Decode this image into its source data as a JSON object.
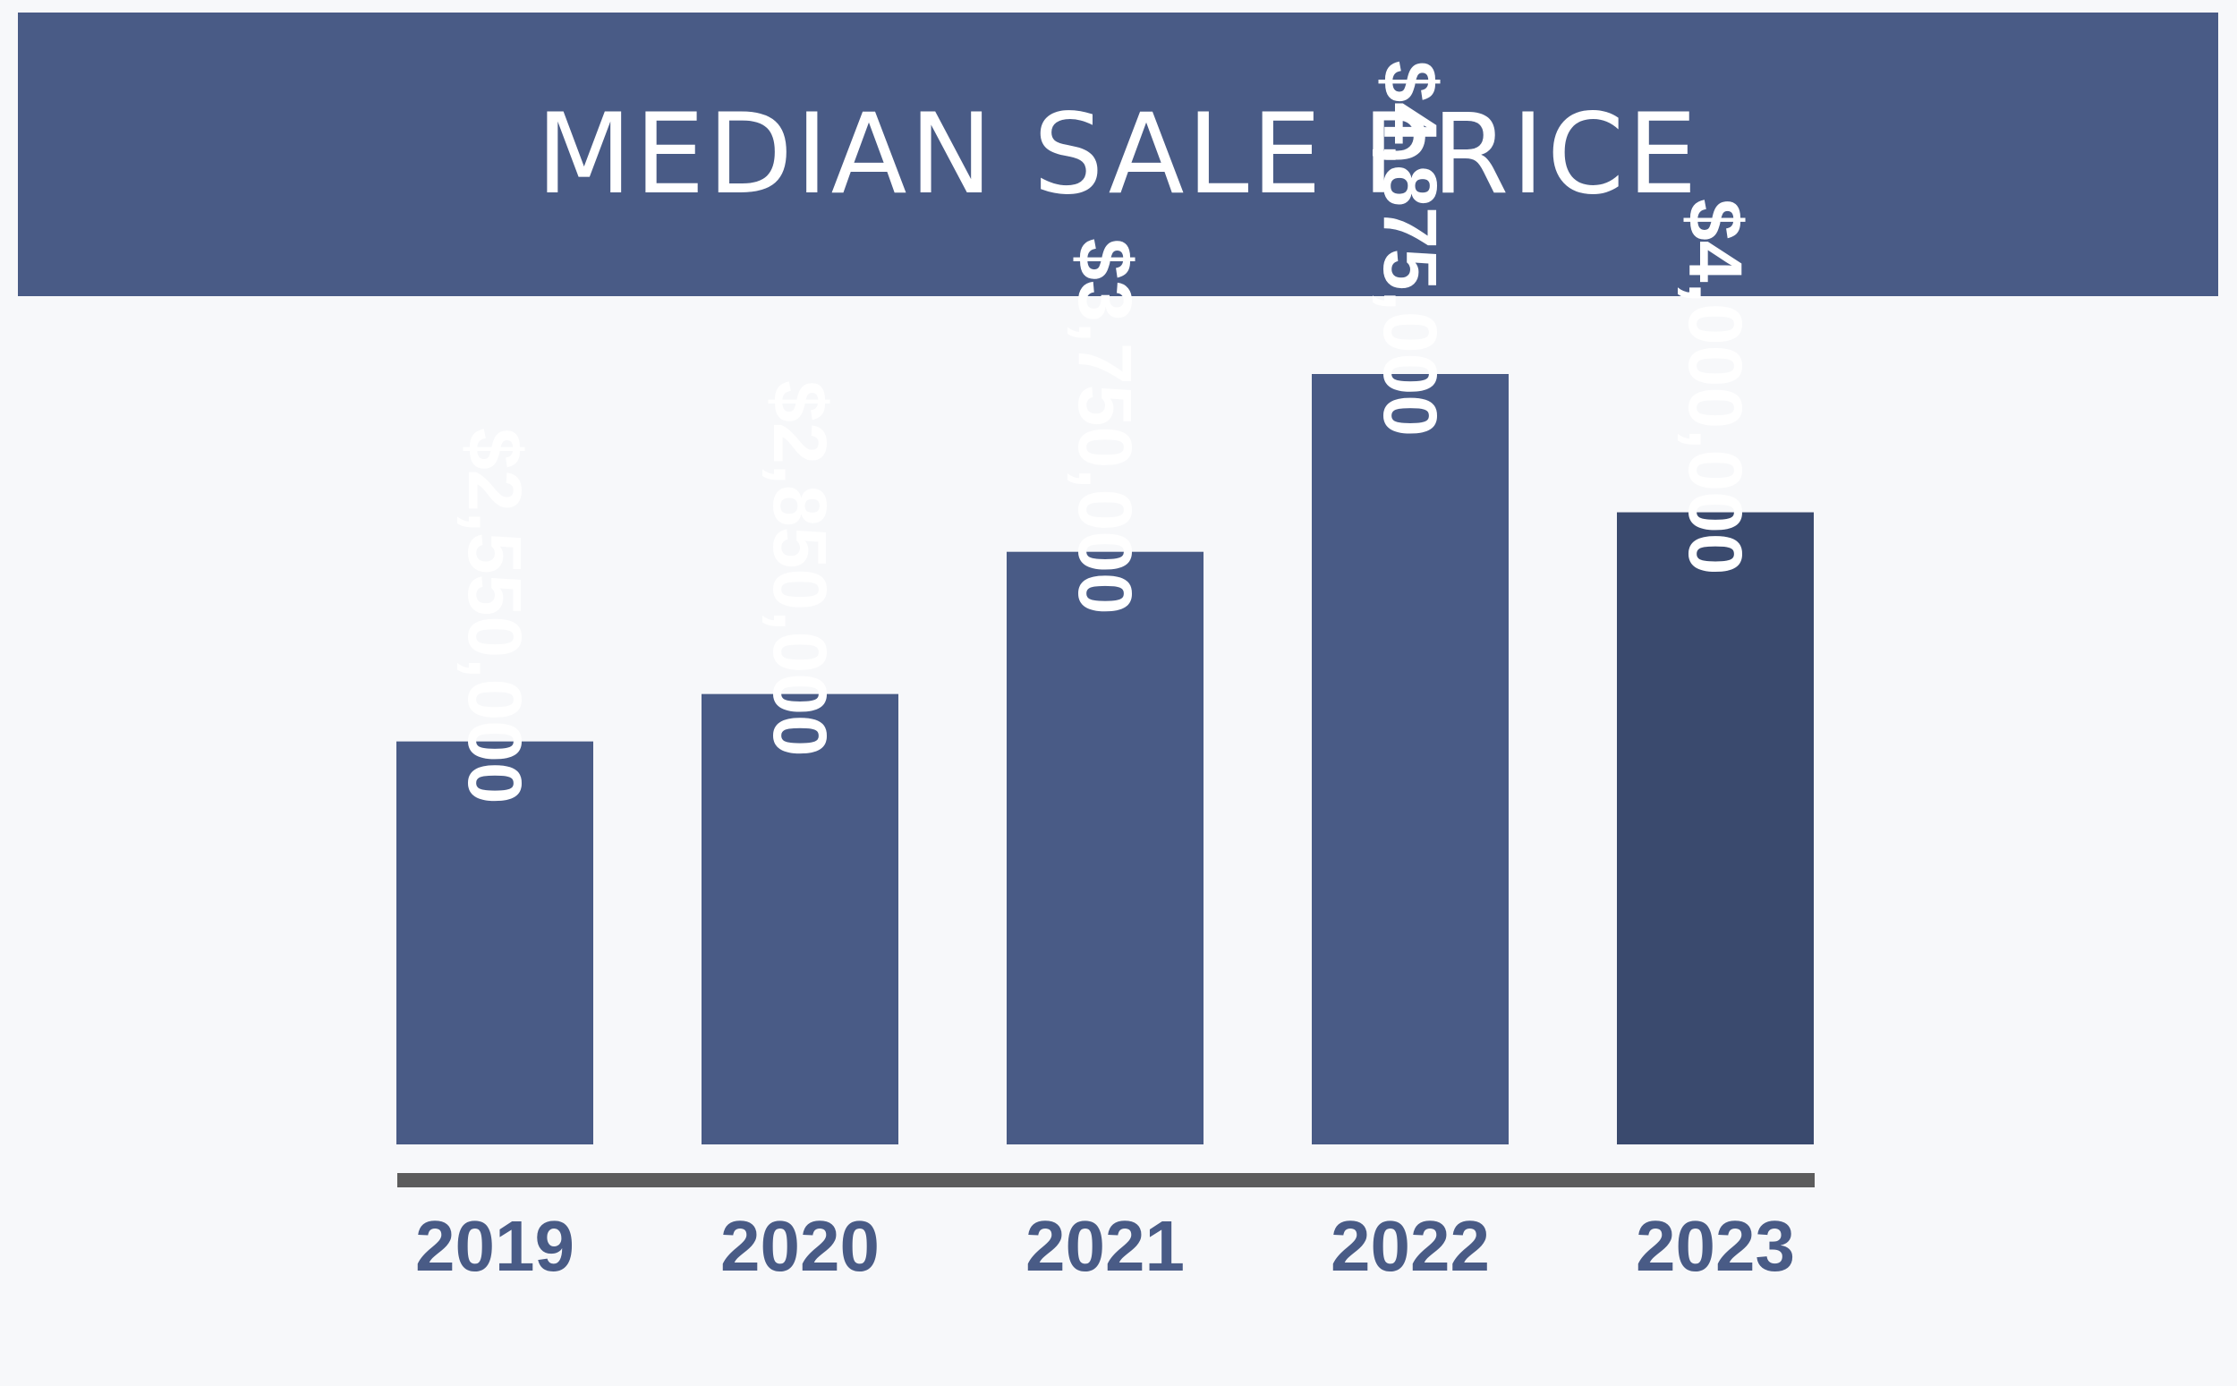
{
  "chart_data": {
    "type": "bar",
    "title": "MEDIAN SALE PRICE",
    "categories": [
      "2019",
      "2020",
      "2021",
      "2022",
      "2023"
    ],
    "values": [
      2550000,
      2850000,
      3750000,
      4875000,
      4000000
    ],
    "value_labels": [
      "$2,550,000",
      "$2,850,000",
      "$3,750,000",
      "$4,875,000",
      "$4,000,000"
    ],
    "xlabel": "",
    "ylabel": "",
    "ylim": [
      0,
      4875000
    ],
    "grid": false,
    "legend": "none",
    "colors": {
      "header": "#495b86",
      "bar": "#495b86",
      "bar_highlight": "#3a4a6e",
      "axis": "#5c5c5c",
      "tick_text": "#495b86",
      "label_text": "#ffffff",
      "background": "#f7f8fa"
    },
    "highlight_index": 4
  }
}
